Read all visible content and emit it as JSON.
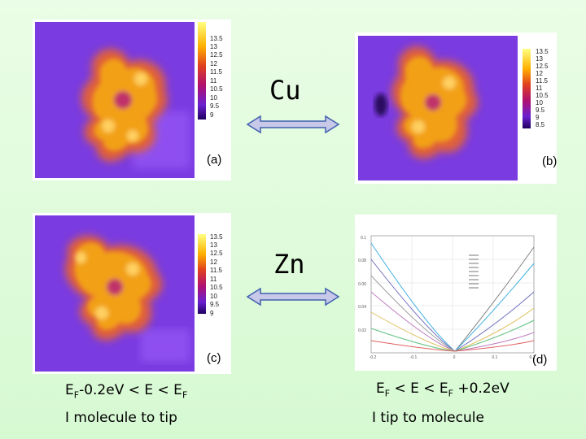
{
  "panels": {
    "a": {
      "label": "(a)",
      "ticks": [
        "13.5",
        "13",
        "12.5",
        "12",
        "11.5",
        "11",
        "10.5",
        "10",
        "9.5",
        "9"
      ]
    },
    "b": {
      "label": "(b)",
      "ticks": [
        "13.5",
        "13",
        "12.5",
        "12",
        "11.5",
        "11",
        "10.5",
        "10",
        "9.5",
        "9",
        "8.5"
      ]
    },
    "c": {
      "label": "(c)",
      "ticks": [
        "13.5",
        "13",
        "12.5",
        "12",
        "11.5",
        "11",
        "10.5",
        "10",
        "9.5",
        "9"
      ]
    },
    "d": {
      "label": "(d)",
      "legend_entries": [
        "",
        "",
        "",
        "",
        "",
        "",
        "",
        "",
        ""
      ],
      "y_ticks": [
        "0.1",
        "0.08",
        "0.06",
        "0.04",
        "0.02",
        ""
      ],
      "x_ticks": [
        "-0.2",
        "-0.1",
        "0",
        "0.1",
        "0.2"
      ]
    }
  },
  "metals": {
    "top": "Cu",
    "bottom": "Zn"
  },
  "captions": {
    "left": {
      "part1": "E",
      "sub1": "F",
      "part2": "-0.2eV < E < E",
      "sub2": "F",
      "part3": ""
    },
    "left_line2": "I molecule to tip",
    "right": {
      "part1": "E",
      "sub1": "F",
      "part2": " < E < E",
      "sub2": "F",
      "part3": " +0.2eV"
    },
    "right_line2": "I tip to molecule"
  },
  "colors": {
    "bg": "#e0fbdc",
    "map_bg": "#7a3be0",
    "blob": "#f0a010"
  }
}
